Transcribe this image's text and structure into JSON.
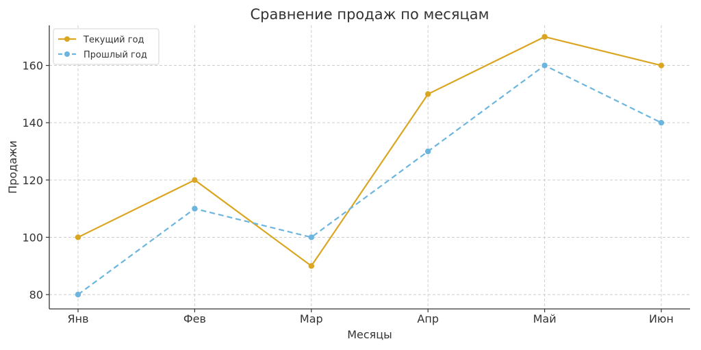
{
  "chart_data": {
    "type": "line",
    "title": "Сравнение продаж по месяцам",
    "xlabel": "Месяцы",
    "ylabel": "Продажи",
    "categories": [
      "Янв",
      "Фев",
      "Мар",
      "Апр",
      "Май",
      "Июн"
    ],
    "series": [
      {
        "name": "Текущий год",
        "values": [
          100,
          120,
          90,
          150,
          170,
          160
        ],
        "color": "#DAA520",
        "style": "solid"
      },
      {
        "name": "Прошлый год",
        "values": [
          80,
          110,
          100,
          130,
          160,
          140
        ],
        "color": "#6BB5DE",
        "style": "dashed"
      }
    ],
    "ylim": [
      75,
      174
    ],
    "yticks": [
      80,
      100,
      120,
      140,
      160
    ],
    "grid": true,
    "legend": "top-left"
  }
}
